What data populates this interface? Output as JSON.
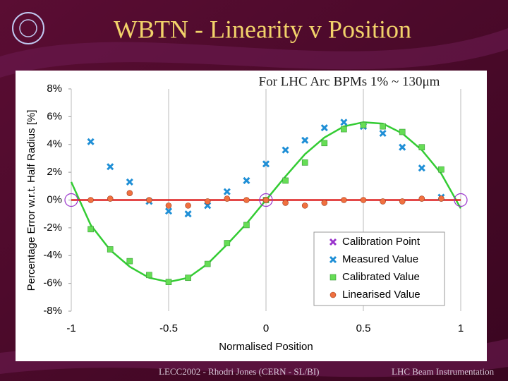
{
  "slide": {
    "title": "WBTN - Linearity v Position",
    "footer_left": "LECC2002  -  Rhodri Jones (CERN - SL/BI)",
    "footer_right": "LHC Beam Instrumentation"
  },
  "chart_data": {
    "type": "scatter",
    "annotation": "For LHC Arc BPMs 1% ~ 130μm",
    "x_label": "Normalised Position",
    "y_label": "Percentage Error w.r.t. Half Radius [%]",
    "xlim": [
      -1,
      1
    ],
    "xticks": [
      -1,
      -0.5,
      0,
      0.5,
      1
    ],
    "ylim": [
      -8,
      8
    ],
    "yticks": [
      {
        "value": -8,
        "label": "-8%"
      },
      {
        "value": -6,
        "label": "-6%"
      },
      {
        "value": -4,
        "label": "-4%"
      },
      {
        "value": -2,
        "label": "-2%"
      },
      {
        "value": 0,
        "label": "0%"
      },
      {
        "value": 2,
        "label": "2%"
      },
      {
        "value": 4,
        "label": "4%"
      },
      {
        "value": 6,
        "label": "6%"
      },
      {
        "value": 8,
        "label": "8%"
      }
    ],
    "grid": "x",
    "legend": "lower right",
    "series": [
      {
        "name": "Calibration Point",
        "color": "#9933cc",
        "marker": "open-circle",
        "x": [
          -1,
          0,
          1
        ],
        "values": [
          0,
          0,
          0
        ]
      },
      {
        "name": "Measured Value",
        "color": "#1f8fd6",
        "marker": "cross",
        "x": [
          -0.9,
          -0.8,
          -0.7,
          -0.6,
          -0.5,
          -0.4,
          -0.3,
          -0.2,
          -0.1,
          0,
          0.1,
          0.2,
          0.3,
          0.4,
          0.5,
          0.6,
          0.7,
          0.8,
          0.9
        ],
        "values": [
          4.2,
          2.4,
          1.3,
          -0.1,
          -0.8,
          -1.0,
          -0.4,
          0.6,
          1.4,
          2.6,
          3.6,
          4.3,
          5.2,
          5.6,
          5.3,
          4.8,
          3.8,
          2.3,
          0.2
        ]
      },
      {
        "name": "Calibrated Value",
        "color": "#66dd55",
        "marker": "square",
        "x": [
          -0.9,
          -0.8,
          -0.7,
          -0.6,
          -0.5,
          -0.4,
          -0.3,
          -0.2,
          -0.1,
          0,
          0.1,
          0.2,
          0.3,
          0.4,
          0.5,
          0.6,
          0.7,
          0.8,
          0.9
        ],
        "values": [
          -2.1,
          -3.55,
          -4.4,
          -5.4,
          -5.9,
          -5.6,
          -4.6,
          -3.1,
          -1.8,
          0,
          1.4,
          2.7,
          4.1,
          5.1,
          5.4,
          5.3,
          4.9,
          3.8,
          2.2
        ]
      },
      {
        "name": "Linearised Value",
        "color": "#f07040",
        "marker": "circle",
        "x": [
          -0.9,
          -0.8,
          -0.7,
          -0.6,
          -0.5,
          -0.4,
          -0.3,
          -0.2,
          -0.1,
          0,
          0.1,
          0.2,
          0.3,
          0.4,
          0.5,
          0.6,
          0.7,
          0.8,
          0.9
        ],
        "values": [
          0,
          0.1,
          0.5,
          0,
          -0.4,
          -0.4,
          -0.1,
          0.1,
          0,
          0,
          -0.2,
          -0.4,
          -0.2,
          0,
          0,
          -0.1,
          -0.1,
          0.1,
          0.1
        ]
      },
      {
        "color": "#33cc33",
        "style": "line",
        "x": [
          -1,
          -0.9,
          -0.8,
          -0.7,
          -0.6,
          -0.5,
          -0.4,
          -0.3,
          -0.2,
          -0.1,
          0,
          0.1,
          0.2,
          0.3,
          0.4,
          0.5,
          0.6,
          0.7,
          0.8,
          0.9,
          1
        ],
        "values": [
          1.3,
          -1.8,
          -3.6,
          -4.8,
          -5.6,
          -5.9,
          -5.6,
          -4.6,
          -3.2,
          -1.7,
          0,
          1.7,
          3.3,
          4.5,
          5.3,
          5.6,
          5.5,
          4.8,
          3.6,
          1.9,
          -0.6
        ]
      },
      {
        "color": "#dd2222",
        "style": "line",
        "x": [
          -1,
          1
        ],
        "values": [
          0,
          0
        ]
      }
    ]
  }
}
